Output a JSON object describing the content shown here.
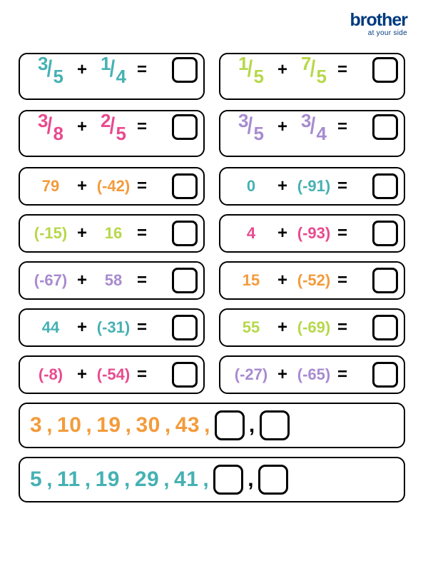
{
  "logo": {
    "brand": "brother",
    "tag": "at your side"
  },
  "colors": {
    "teal": "#46b1b3",
    "lime": "#b6d84a",
    "pink": "#e94a8f",
    "purple": "#a78bd0",
    "orange": "#f39b3b",
    "blue": "#003a7d"
  },
  "fraction_rows": [
    {
      "left": {
        "a_num": "3",
        "a_den": "5",
        "a_color": "teal",
        "b_num": "1",
        "b_den": "4",
        "b_color": "teal"
      },
      "right": {
        "a_num": "1",
        "a_den": "5",
        "a_color": "lime",
        "b_num": "7",
        "b_den": "5",
        "b_color": "lime"
      }
    },
    {
      "left": {
        "a_num": "3",
        "a_den": "8",
        "a_color": "pink",
        "b_num": "2",
        "b_den": "5",
        "b_color": "pink"
      },
      "right": {
        "a_num": "3",
        "a_den": "5",
        "a_color": "purple",
        "b_num": "3",
        "b_den": "4",
        "b_color": "purple"
      }
    }
  ],
  "integer_rows": [
    {
      "left": {
        "a": "79",
        "a_color": "orange",
        "b": "(-42)",
        "b_color": "orange"
      },
      "right": {
        "a": "0",
        "a_color": "teal",
        "b": "(-91)",
        "b_color": "teal"
      }
    },
    {
      "left": {
        "a": "(-15)",
        "a_color": "lime",
        "b": "16",
        "b_color": "lime"
      },
      "right": {
        "a": "4",
        "a_color": "pink",
        "b": "(-93)",
        "b_color": "pink"
      }
    },
    {
      "left": {
        "a": "(-67)",
        "a_color": "purple",
        "b": "58",
        "b_color": "purple"
      },
      "right": {
        "a": "15",
        "a_color": "orange",
        "b": "(-52)",
        "b_color": "orange"
      }
    },
    {
      "left": {
        "a": "44",
        "a_color": "teal",
        "b": "(-31)",
        "b_color": "teal"
      },
      "right": {
        "a": "55",
        "a_color": "lime",
        "b": "(-69)",
        "b_color": "lime"
      }
    },
    {
      "left": {
        "a": "(-8)",
        "a_color": "pink",
        "b": "(-54)",
        "b_color": "pink"
      },
      "right": {
        "a": "(-27)",
        "a_color": "purple",
        "b": "(-65)",
        "b_color": "purple"
      }
    }
  ],
  "sequences": [
    {
      "nums": [
        "3",
        "10",
        "19",
        "30",
        "43"
      ],
      "color": "orange"
    },
    {
      "nums": [
        "5",
        "11",
        "19",
        "29",
        "41"
      ],
      "color": "teal"
    }
  ],
  "symbols": {
    "plus": "+",
    "eq": "=",
    "comma": ","
  }
}
